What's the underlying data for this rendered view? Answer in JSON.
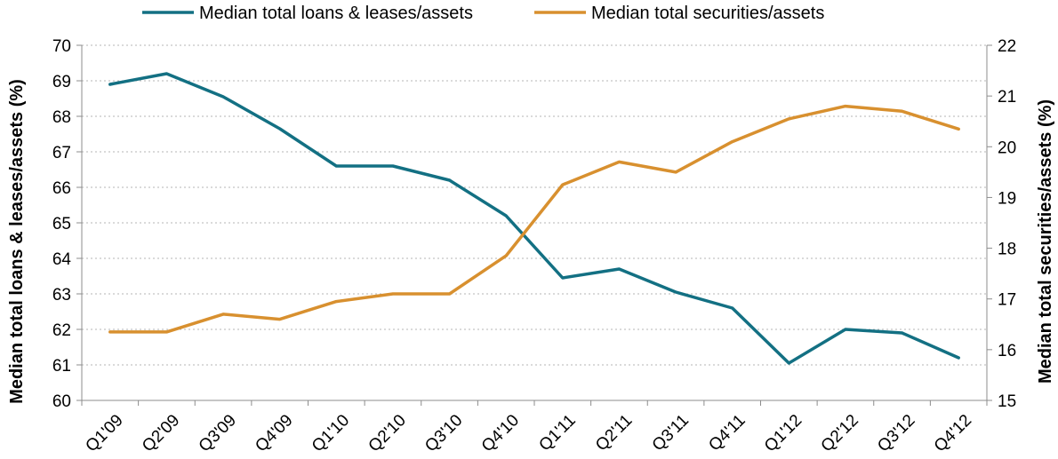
{
  "chart_data": {
    "type": "line",
    "categories": [
      "Q1'09",
      "Q2'09",
      "Q3'09",
      "Q4'09",
      "Q1'10",
      "Q2'10",
      "Q3'10",
      "Q4'10",
      "Q1'11",
      "Q2'11",
      "Q3'11",
      "Q4'11",
      "Q1'12",
      "Q2'12",
      "Q3'12",
      "Q4'12"
    ],
    "series": [
      {
        "name": "Median total loans & leases/assets",
        "axis": "left",
        "color": "#137083",
        "values": [
          68.9,
          69.2,
          68.55,
          67.65,
          66.6,
          66.6,
          66.2,
          65.2,
          63.45,
          63.7,
          63.05,
          62.6,
          61.05,
          62.0,
          61.9,
          61.2
        ]
      },
      {
        "name": "Median total securities/assets",
        "axis": "right",
        "color": "#d8902f",
        "values": [
          16.35,
          16.35,
          16.7,
          16.6,
          16.95,
          17.1,
          17.1,
          17.85,
          19.25,
          19.7,
          19.5,
          20.1,
          20.55,
          20.8,
          20.7,
          20.35
        ]
      }
    ],
    "ylabel": "Median total loans & leases/assets (%)",
    "y2label": "Median total securities/assets (%)",
    "ylim": [
      60,
      70
    ],
    "y2lim": [
      15,
      22
    ],
    "yticks": [
      "60",
      "61",
      "62",
      "63",
      "64",
      "65",
      "66",
      "67",
      "68",
      "69",
      "70"
    ],
    "y2ticks": [
      "15",
      "16",
      "17",
      "18",
      "19",
      "20",
      "21",
      "22"
    ],
    "grid": "horizontal dotted",
    "legend": "top-center"
  }
}
